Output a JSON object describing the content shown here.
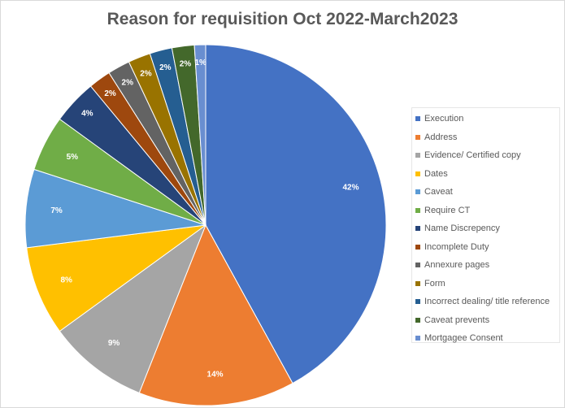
{
  "chart_data": {
    "type": "pie",
    "title": "Reason for requisition Oct 2022-March2023",
    "legend_position": "right",
    "slices": [
      {
        "label": "Execution",
        "value": 42,
        "display": "42%",
        "color": "#4472C4"
      },
      {
        "label": "Address",
        "value": 14,
        "display": "14%",
        "color": "#ED7D31"
      },
      {
        "label": "Evidence/ Certified copy",
        "value": 9,
        "display": "9%",
        "color": "#A5A5A5"
      },
      {
        "label": "Dates",
        "value": 8,
        "display": "8%",
        "color": "#FFC000"
      },
      {
        "label": "Caveat",
        "value": 7,
        "display": "7%",
        "color": "#5B9BD5"
      },
      {
        "label": "Require CT",
        "value": 5,
        "display": "5%",
        "color": "#70AD47"
      },
      {
        "label": "Name Discrepency",
        "value": 4,
        "display": "4%",
        "color": "#264478"
      },
      {
        "label": "Incomplete Duty",
        "value": 2,
        "display": "2%",
        "color": "#9E480E"
      },
      {
        "label": "Annexure pages",
        "value": 2,
        "display": "2%",
        "color": "#636363"
      },
      {
        "label": "Form",
        "value": 2,
        "display": "2%",
        "color": "#997300"
      },
      {
        "label": "Incorrect dealing/ title reference",
        "value": 2,
        "display": "2%",
        "color": "#255E91"
      },
      {
        "label": "Caveat prevents",
        "value": 2,
        "display": "2%",
        "color": "#43682B"
      },
      {
        "label": "Mortgagee Consent",
        "value": 1,
        "display": "1%",
        "color": "#698ED0"
      }
    ]
  }
}
